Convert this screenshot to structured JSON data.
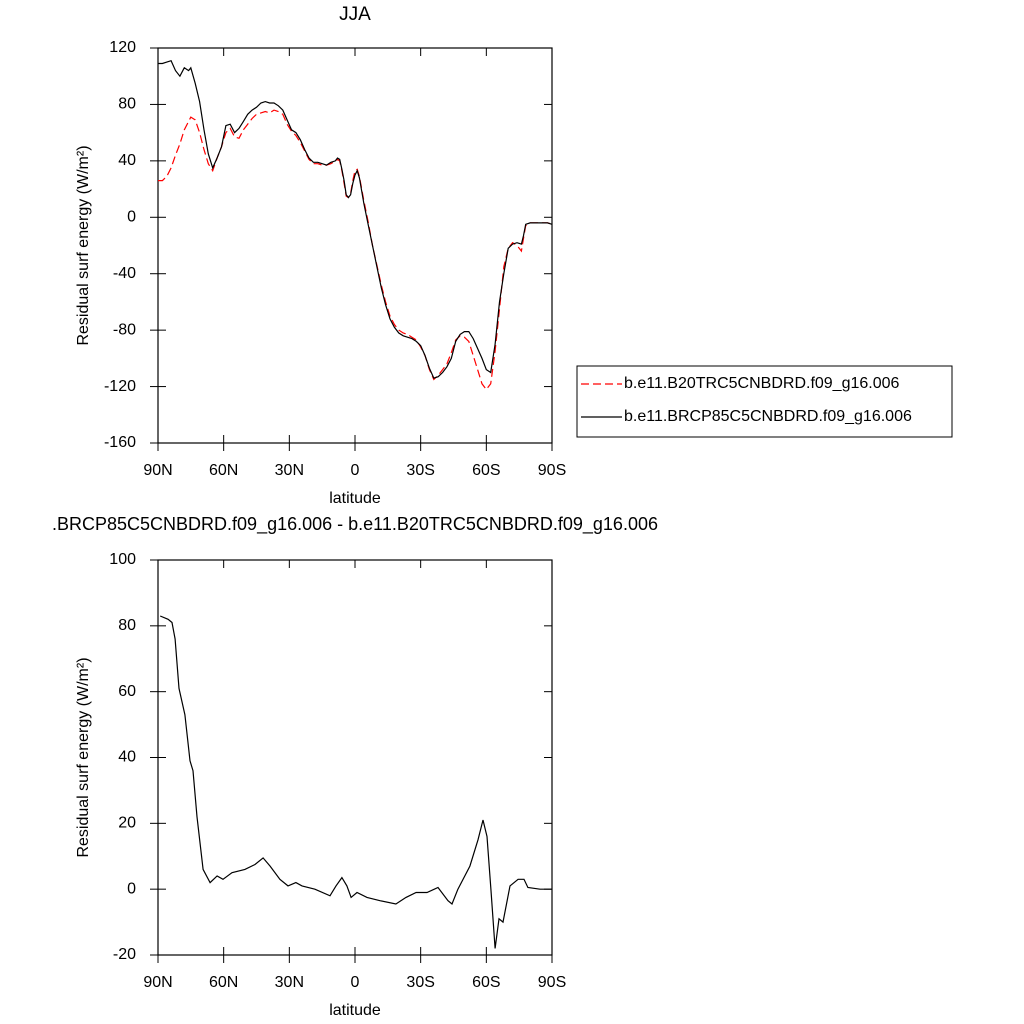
{
  "chart_data": [
    {
      "type": "line",
      "title": "JJA",
      "xlabel": "latitude",
      "ylabel": "Residual surf energy (W/m²)",
      "x": [
        90,
        88,
        86,
        84,
        82,
        80,
        78,
        76,
        75,
        73,
        71,
        69,
        67,
        65,
        63,
        61,
        59,
        57,
        55,
        53,
        51,
        49,
        47,
        45,
        43,
        41,
        39,
        37,
        35,
        33,
        31,
        29,
        27,
        25,
        23,
        21,
        19,
        17,
        15,
        13,
        11,
        9,
        8,
        7,
        6,
        5,
        4,
        3,
        2,
        1,
        0,
        -1,
        -2,
        -4,
        -6,
        -8,
        -10,
        -12,
        -14,
        -16,
        -18,
        -20,
        -22,
        -24,
        -26,
        -28,
        -30,
        -32,
        -34,
        -36,
        -38,
        -40,
        -42,
        -44,
        -46,
        -48,
        -50,
        -52,
        -54,
        -56,
        -58,
        -60,
        -62,
        -64,
        -66,
        -68,
        -70,
        -72,
        -74,
        -76,
        -77,
        -78,
        -80,
        -84,
        -88,
        -90
      ],
      "series": [
        {
          "name": "b.e11.B20TRC5CNBDRD.f09_g16.006",
          "color": "#ff0000",
          "style": "dashed",
          "values": [
            26,
            26,
            29,
            35,
            44,
            52,
            62,
            68,
            71,
            69,
            60,
            48,
            38,
            33,
            42,
            50,
            60,
            63,
            57,
            56,
            62,
            66,
            70,
            73,
            74,
            75,
            74,
            76,
            75,
            73,
            66,
            61,
            58,
            53,
            47,
            41,
            38,
            38,
            37,
            37,
            38,
            40,
            41,
            40,
            33,
            24,
            15,
            14,
            17,
            26,
            33,
            34,
            29,
            12,
            -3,
            -20,
            -34,
            -48,
            -60,
            -70,
            -76,
            -80,
            -82,
            -83,
            -85,
            -87,
            -92,
            -98,
            -108,
            -115,
            -112,
            -108,
            -104,
            -96,
            -87,
            -84,
            -85,
            -88,
            -98,
            -108,
            -118,
            -122,
            -118,
            -95,
            -65,
            -35,
            -22,
            -18,
            -20,
            -24,
            -15,
            -6,
            -4,
            -4,
            -4,
            -5
          ]
        },
        {
          "name": "b.e11.BRCP85C5CNBDRD.f09_g16.006",
          "color": "#000000",
          "style": "solid",
          "values": [
            109,
            109,
            110,
            111,
            104,
            100,
            106,
            104,
            106,
            95,
            82,
            62,
            45,
            35,
            42,
            50,
            65,
            66,
            60,
            63,
            68,
            73,
            76,
            78,
            81,
            82,
            81,
            81,
            79,
            76,
            69,
            62,
            60,
            55,
            48,
            42,
            39,
            39,
            38,
            37,
            39,
            40,
            42,
            41,
            34,
            26,
            16,
            14,
            16,
            24,
            30,
            33,
            28,
            10,
            -5,
            -20,
            -35,
            -50,
            -62,
            -72,
            -78,
            -82,
            -84,
            -85,
            -86,
            -88,
            -91,
            -98,
            -107,
            -114,
            -113,
            -110,
            -106,
            -100,
            -88,
            -83,
            -81,
            -81,
            -86,
            -93,
            -100,
            -108,
            -110,
            -90,
            -60,
            -40,
            -22,
            -19,
            -18,
            -19,
            -13,
            -5,
            -4,
            -4,
            -4,
            -5
          ]
        }
      ],
      "xlim": [
        90,
        -90
      ],
      "xticks": [
        {
          "value": 90,
          "label": "90N"
        },
        {
          "value": 60,
          "label": "60N"
        },
        {
          "value": 30,
          "label": "30N"
        },
        0,
        {
          "value": -30,
          "label": "30S"
        },
        {
          "value": -60,
          "label": "60S"
        },
        {
          "value": -90,
          "label": "90S"
        }
      ],
      "ylim": [
        -160,
        120
      ],
      "yticks": [
        120,
        80,
        40,
        0,
        -40,
        -80,
        -120,
        -160
      ],
      "legend": "right"
    },
    {
      "type": "line",
      "title": ".BRCP85C5CNBDRD.f09_g16.006 - b.e11.B20TRC5CNBDRD.f09_g16.006",
      "xlabel": "latitude",
      "ylabel": "Residual surf energy (W/m²)",
      "x": [
        89,
        85.4,
        83.6,
        82.2,
        80.4,
        77.7,
        75.4,
        74,
        72.2,
        69.4,
        66.2,
        63,
        60.3,
        56.2,
        50.3,
        45.7,
        42,
        38.8,
        34.3,
        30.6,
        27,
        24.2,
        18.3,
        11.4,
        8.7,
        6,
        3.7,
        1.8,
        -0.9,
        -5.5,
        -11.4,
        -18.7,
        -23.3,
        -27.9,
        -32.9,
        -37.9,
        -42.5,
        -44.3,
        -47,
        -52.5,
        -56.2,
        -58.5,
        -60.3,
        -62.1,
        -64,
        -65.8,
        -67.6,
        -70.8,
        -74.5,
        -77.2,
        -79,
        -84.5,
        -90
      ],
      "series": [
        {
          "name": "difference",
          "color": "#000000",
          "style": "solid",
          "values": [
            83,
            82,
            81,
            76,
            61,
            53,
            39,
            36,
            22,
            6,
            2,
            4,
            3,
            5,
            6,
            7.5,
            9.5,
            7,
            3,
            1,
            2,
            1,
            0,
            -2,
            1,
            3.5,
            1,
            -2.5,
            -1,
            -2.5,
            -3.5,
            -4.5,
            -2.5,
            -1,
            -1,
            0.5,
            -3.5,
            -4.5,
            0,
            7,
            15,
            21,
            16,
            0,
            -18,
            -9,
            -10,
            1,
            3,
            3,
            0.5,
            0,
            0
          ]
        }
      ],
      "xlim": [
        90,
        -90
      ],
      "xticks": [
        {
          "value": 90,
          "label": "90N"
        },
        {
          "value": 60,
          "label": "60N"
        },
        {
          "value": 30,
          "label": "30N"
        },
        0,
        {
          "value": -30,
          "label": "30S"
        },
        {
          "value": -60,
          "label": "60S"
        },
        {
          "value": -90,
          "label": "90S"
        }
      ],
      "ylim": [
        -20,
        100
      ],
      "yticks": [
        100,
        80,
        60,
        40,
        20,
        0,
        -20
      ]
    }
  ]
}
